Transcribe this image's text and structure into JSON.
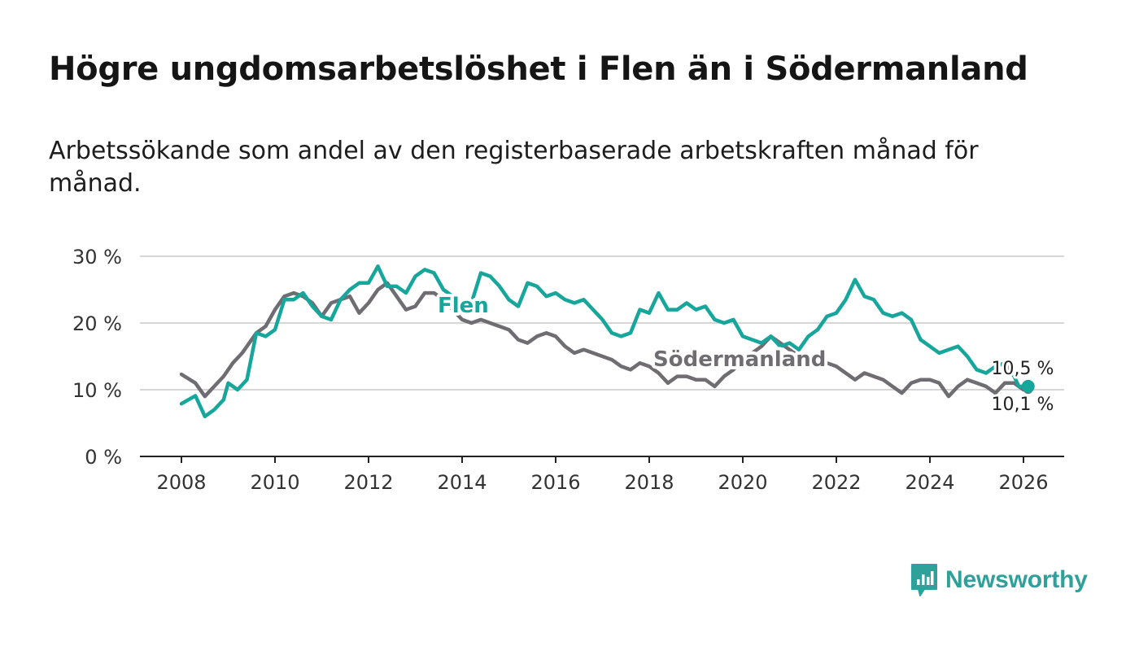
{
  "title": "Högre ungdomsarbetslöshet i Flen än i Södermanland",
  "subtitle": "Arbetssökande som andel av den registerbaserade arbetskraften månad för månad.",
  "brand": {
    "name": "Newsworthy",
    "color": "#2ea19a"
  },
  "chart_data": {
    "type": "line",
    "title": "Högre ungdomsarbetslöshet i Flen än i Södermanland",
    "xlabel": "",
    "ylabel": "",
    "xlim": [
      2008,
      2026.2
    ],
    "ylim": [
      0,
      30
    ],
    "grid": true,
    "x_ticks": [
      2008,
      2010,
      2012,
      2014,
      2016,
      2018,
      2020,
      2022,
      2024,
      2026
    ],
    "x_tick_labels": [
      "2008",
      "2010",
      "2012",
      "2014",
      "2016",
      "2018",
      "2020",
      "2022",
      "2024",
      "2026"
    ],
    "y_ticks": [
      0,
      10,
      20,
      30
    ],
    "y_tick_labels": [
      "0 %",
      "10 %",
      "20 %",
      "30 %"
    ],
    "end_labels": {
      "flen": "10,5 %",
      "sodermanland": "10,1 %"
    },
    "series": [
      {
        "name": "Flen",
        "color": "#17a69b",
        "points": [
          [
            2008.0,
            7.9
          ],
          [
            2008.3,
            9.1
          ],
          [
            2008.5,
            6.0
          ],
          [
            2008.7,
            7.0
          ],
          [
            2008.9,
            8.5
          ],
          [
            2009.0,
            11.0
          ],
          [
            2009.2,
            10.0
          ],
          [
            2009.4,
            11.5
          ],
          [
            2009.6,
            18.5
          ],
          [
            2009.8,
            18.0
          ],
          [
            2010.0,
            19.0
          ],
          [
            2010.2,
            23.5
          ],
          [
            2010.4,
            23.5
          ],
          [
            2010.6,
            24.5
          ],
          [
            2010.8,
            22.5
          ],
          [
            2011.0,
            21.0
          ],
          [
            2011.2,
            20.5
          ],
          [
            2011.4,
            23.5
          ],
          [
            2011.6,
            25.0
          ],
          [
            2011.8,
            26.0
          ],
          [
            2012.0,
            26.0
          ],
          [
            2012.2,
            28.5
          ],
          [
            2012.4,
            25.5
          ],
          [
            2012.6,
            25.5
          ],
          [
            2012.8,
            24.5
          ],
          [
            2013.0,
            27.0
          ],
          [
            2013.2,
            28.0
          ],
          [
            2013.4,
            27.5
          ],
          [
            2013.6,
            25.0
          ],
          [
            2013.8,
            24.0
          ],
          [
            2014.0,
            21.5
          ],
          [
            2014.2,
            23.0
          ],
          [
            2014.4,
            27.5
          ],
          [
            2014.6,
            27.0
          ],
          [
            2014.8,
            25.5
          ],
          [
            2015.0,
            23.5
          ],
          [
            2015.2,
            22.5
          ],
          [
            2015.4,
            26.0
          ],
          [
            2015.6,
            25.5
          ],
          [
            2015.8,
            24.0
          ],
          [
            2016.0,
            24.5
          ],
          [
            2016.2,
            23.5
          ],
          [
            2016.4,
            23.0
          ],
          [
            2016.6,
            23.5
          ],
          [
            2016.8,
            22.0
          ],
          [
            2017.0,
            20.5
          ],
          [
            2017.2,
            18.5
          ],
          [
            2017.4,
            18.0
          ],
          [
            2017.6,
            18.5
          ],
          [
            2017.8,
            22.0
          ],
          [
            2018.0,
            21.5
          ],
          [
            2018.2,
            24.5
          ],
          [
            2018.4,
            22.0
          ],
          [
            2018.6,
            22.0
          ],
          [
            2018.8,
            23.0
          ],
          [
            2019.0,
            22.0
          ],
          [
            2019.2,
            22.5
          ],
          [
            2019.4,
            20.5
          ],
          [
            2019.6,
            20.0
          ],
          [
            2019.8,
            20.5
          ],
          [
            2020.0,
            18.0
          ],
          [
            2020.2,
            17.5
          ],
          [
            2020.4,
            17.0
          ],
          [
            2020.6,
            18.0
          ],
          [
            2020.8,
            16.5
          ],
          [
            2021.0,
            17.0
          ],
          [
            2021.2,
            16.0
          ],
          [
            2021.4,
            18.0
          ],
          [
            2021.6,
            19.0
          ],
          [
            2021.8,
            21.0
          ],
          [
            2022.0,
            21.5
          ],
          [
            2022.2,
            23.5
          ],
          [
            2022.4,
            26.5
          ],
          [
            2022.6,
            24.0
          ],
          [
            2022.8,
            23.5
          ],
          [
            2023.0,
            21.5
          ],
          [
            2023.2,
            21.0
          ],
          [
            2023.4,
            21.5
          ],
          [
            2023.6,
            20.5
          ],
          [
            2023.8,
            17.5
          ],
          [
            2024.0,
            16.5
          ],
          [
            2024.2,
            15.5
          ],
          [
            2024.4,
            16.0
          ],
          [
            2024.6,
            16.5
          ],
          [
            2024.8,
            15.0
          ],
          [
            2025.0,
            13.0
          ],
          [
            2025.2,
            12.5
          ],
          [
            2025.4,
            13.5
          ],
          [
            2025.6,
            14.0
          ],
          [
            2025.8,
            12.0
          ],
          [
            2025.9,
            10.5
          ],
          [
            2026.0,
            10.5
          ],
          [
            2026.1,
            10.5
          ]
        ]
      },
      {
        "name": "Södermanland",
        "color": "#6f6d72",
        "points": [
          [
            2008.0,
            12.3
          ],
          [
            2008.3,
            11.0
          ],
          [
            2008.5,
            9.0
          ],
          [
            2008.7,
            10.5
          ],
          [
            2008.9,
            12.0
          ],
          [
            2009.1,
            14.0
          ],
          [
            2009.3,
            15.5
          ],
          [
            2009.6,
            18.5
          ],
          [
            2009.8,
            19.5
          ],
          [
            2010.0,
            22.0
          ],
          [
            2010.2,
            24.0
          ],
          [
            2010.4,
            24.5
          ],
          [
            2010.6,
            24.0
          ],
          [
            2010.8,
            23.0
          ],
          [
            2011.0,
            21.0
          ],
          [
            2011.2,
            23.0
          ],
          [
            2011.4,
            23.5
          ],
          [
            2011.6,
            24.0
          ],
          [
            2011.8,
            21.5
          ],
          [
            2012.0,
            23.0
          ],
          [
            2012.2,
            25.0
          ],
          [
            2012.4,
            26.0
          ],
          [
            2012.6,
            24.0
          ],
          [
            2012.8,
            22.0
          ],
          [
            2013.0,
            22.5
          ],
          [
            2013.2,
            24.5
          ],
          [
            2013.4,
            24.5
          ],
          [
            2013.6,
            23.5
          ],
          [
            2013.8,
            22.0
          ],
          [
            2014.0,
            20.5
          ],
          [
            2014.2,
            20.0
          ],
          [
            2014.4,
            20.5
          ],
          [
            2014.6,
            20.0
          ],
          [
            2014.8,
            19.5
          ],
          [
            2015.0,
            19.0
          ],
          [
            2015.2,
            17.5
          ],
          [
            2015.4,
            17.0
          ],
          [
            2015.6,
            18.0
          ],
          [
            2015.8,
            18.5
          ],
          [
            2016.0,
            18.0
          ],
          [
            2016.2,
            16.5
          ],
          [
            2016.4,
            15.5
          ],
          [
            2016.6,
            16.0
          ],
          [
            2016.8,
            15.5
          ],
          [
            2017.0,
            15.0
          ],
          [
            2017.2,
            14.5
          ],
          [
            2017.4,
            13.5
          ],
          [
            2017.6,
            13.0
          ],
          [
            2017.8,
            14.0
          ],
          [
            2018.0,
            13.5
          ],
          [
            2018.2,
            12.5
          ],
          [
            2018.4,
            11.0
          ],
          [
            2018.6,
            12.0
          ],
          [
            2018.8,
            12.0
          ],
          [
            2019.0,
            11.5
          ],
          [
            2019.2,
            11.5
          ],
          [
            2019.4,
            10.5
          ],
          [
            2019.6,
            12.0
          ],
          [
            2019.8,
            13.0
          ],
          [
            2020.0,
            14.5
          ],
          [
            2020.2,
            15.5
          ],
          [
            2020.4,
            16.5
          ],
          [
            2020.6,
            18.0
          ],
          [
            2020.8,
            17.0
          ],
          [
            2021.0,
            16.0
          ],
          [
            2021.2,
            15.0
          ],
          [
            2021.4,
            14.5
          ],
          [
            2021.6,
            14.5
          ],
          [
            2021.8,
            14.0
          ],
          [
            2022.0,
            13.5
          ],
          [
            2022.2,
            12.5
          ],
          [
            2022.4,
            11.5
          ],
          [
            2022.6,
            12.5
          ],
          [
            2022.8,
            12.0
          ],
          [
            2023.0,
            11.5
          ],
          [
            2023.2,
            10.5
          ],
          [
            2023.4,
            9.5
          ],
          [
            2023.6,
            11.0
          ],
          [
            2023.8,
            11.5
          ],
          [
            2024.0,
            11.5
          ],
          [
            2024.2,
            11.0
          ],
          [
            2024.4,
            9.0
          ],
          [
            2024.6,
            10.5
          ],
          [
            2024.8,
            11.5
          ],
          [
            2025.0,
            11.0
          ],
          [
            2025.2,
            10.5
          ],
          [
            2025.4,
            9.5
          ],
          [
            2025.6,
            11.0
          ],
          [
            2025.8,
            11.0
          ],
          [
            2026.0,
            10.0
          ],
          [
            2026.1,
            10.1
          ]
        ]
      }
    ]
  }
}
